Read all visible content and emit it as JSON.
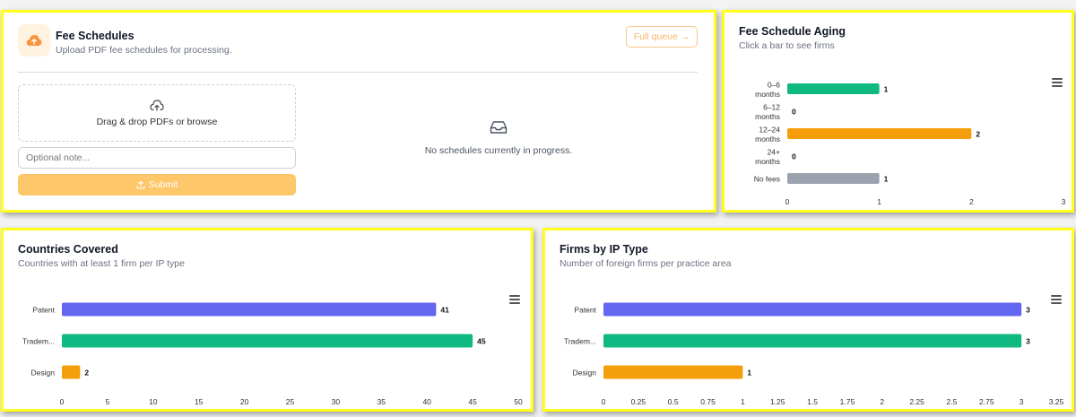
{
  "fee_schedules": {
    "title": "Fee Schedules",
    "subtitle": "Upload PDF fee schedules for processing.",
    "full_queue_label": "Full queue →",
    "dropzone_text": "Drag & drop PDFs or browse",
    "note_placeholder": "Optional note...",
    "note_value": "",
    "submit_label": "Submit",
    "empty_text": "No schedules currently in progress.",
    "icons": [
      "upload-cloud-icon",
      "cloud-upload-outline-icon",
      "upload-icon",
      "inbox-icon",
      "arrow-right-icon"
    ],
    "accent_color": "#fdc76a"
  },
  "aging": {
    "title": "Fee Schedule Aging",
    "subtitle": "Click a bar to see firms",
    "chart_data": {
      "type": "bar",
      "orientation": "horizontal",
      "categories": [
        [
          "0–6",
          "months"
        ],
        [
          "6–12",
          "months"
        ],
        [
          "12–24",
          "months"
        ],
        [
          "24+",
          "months"
        ],
        [
          "No fees"
        ]
      ],
      "values": [
        1,
        0,
        2,
        0,
        1
      ],
      "colors": [
        "#10b981",
        "#10b981",
        "#f59e0b",
        "#f59e0b",
        "#9ca3af"
      ],
      "xlim": [
        0,
        3
      ],
      "xticks": [
        "0",
        "1",
        "2",
        "3"
      ],
      "data_labels": true,
      "grid": false
    }
  },
  "countries": {
    "title": "Countries Covered",
    "subtitle": "Countries with at least 1 firm per IP type",
    "chart_data": {
      "type": "bar",
      "orientation": "horizontal",
      "categories": [
        [
          "Patent"
        ],
        [
          "Tradem..."
        ],
        [
          "Design"
        ]
      ],
      "values": [
        41,
        45,
        2
      ],
      "colors": [
        "#6366f1",
        "#10b981",
        "#f59e0b"
      ],
      "xlim": [
        0,
        50
      ],
      "xticks": [
        "0",
        "5",
        "10",
        "15",
        "20",
        "25",
        "30",
        "35",
        "40",
        "45",
        "50"
      ],
      "data_labels": true,
      "grid": false
    }
  },
  "ip_type": {
    "title": "Firms by IP Type",
    "subtitle": "Number of foreign firms per practice area",
    "chart_data": {
      "type": "bar",
      "orientation": "horizontal",
      "categories": [
        [
          "Patent"
        ],
        [
          "Tradem..."
        ],
        [
          "Design"
        ]
      ],
      "values": [
        3,
        3,
        1
      ],
      "colors": [
        "#6366f1",
        "#10b981",
        "#f59e0b"
      ],
      "xlim": [
        0,
        3.25
      ],
      "xticks": [
        "0",
        "0.25",
        "0.5",
        "0.75",
        "1",
        "1.25",
        "1.5",
        "1.75",
        "2",
        "2.25",
        "2.5",
        "2.75",
        "3",
        "3.25"
      ],
      "data_labels": true,
      "grid": false
    }
  }
}
